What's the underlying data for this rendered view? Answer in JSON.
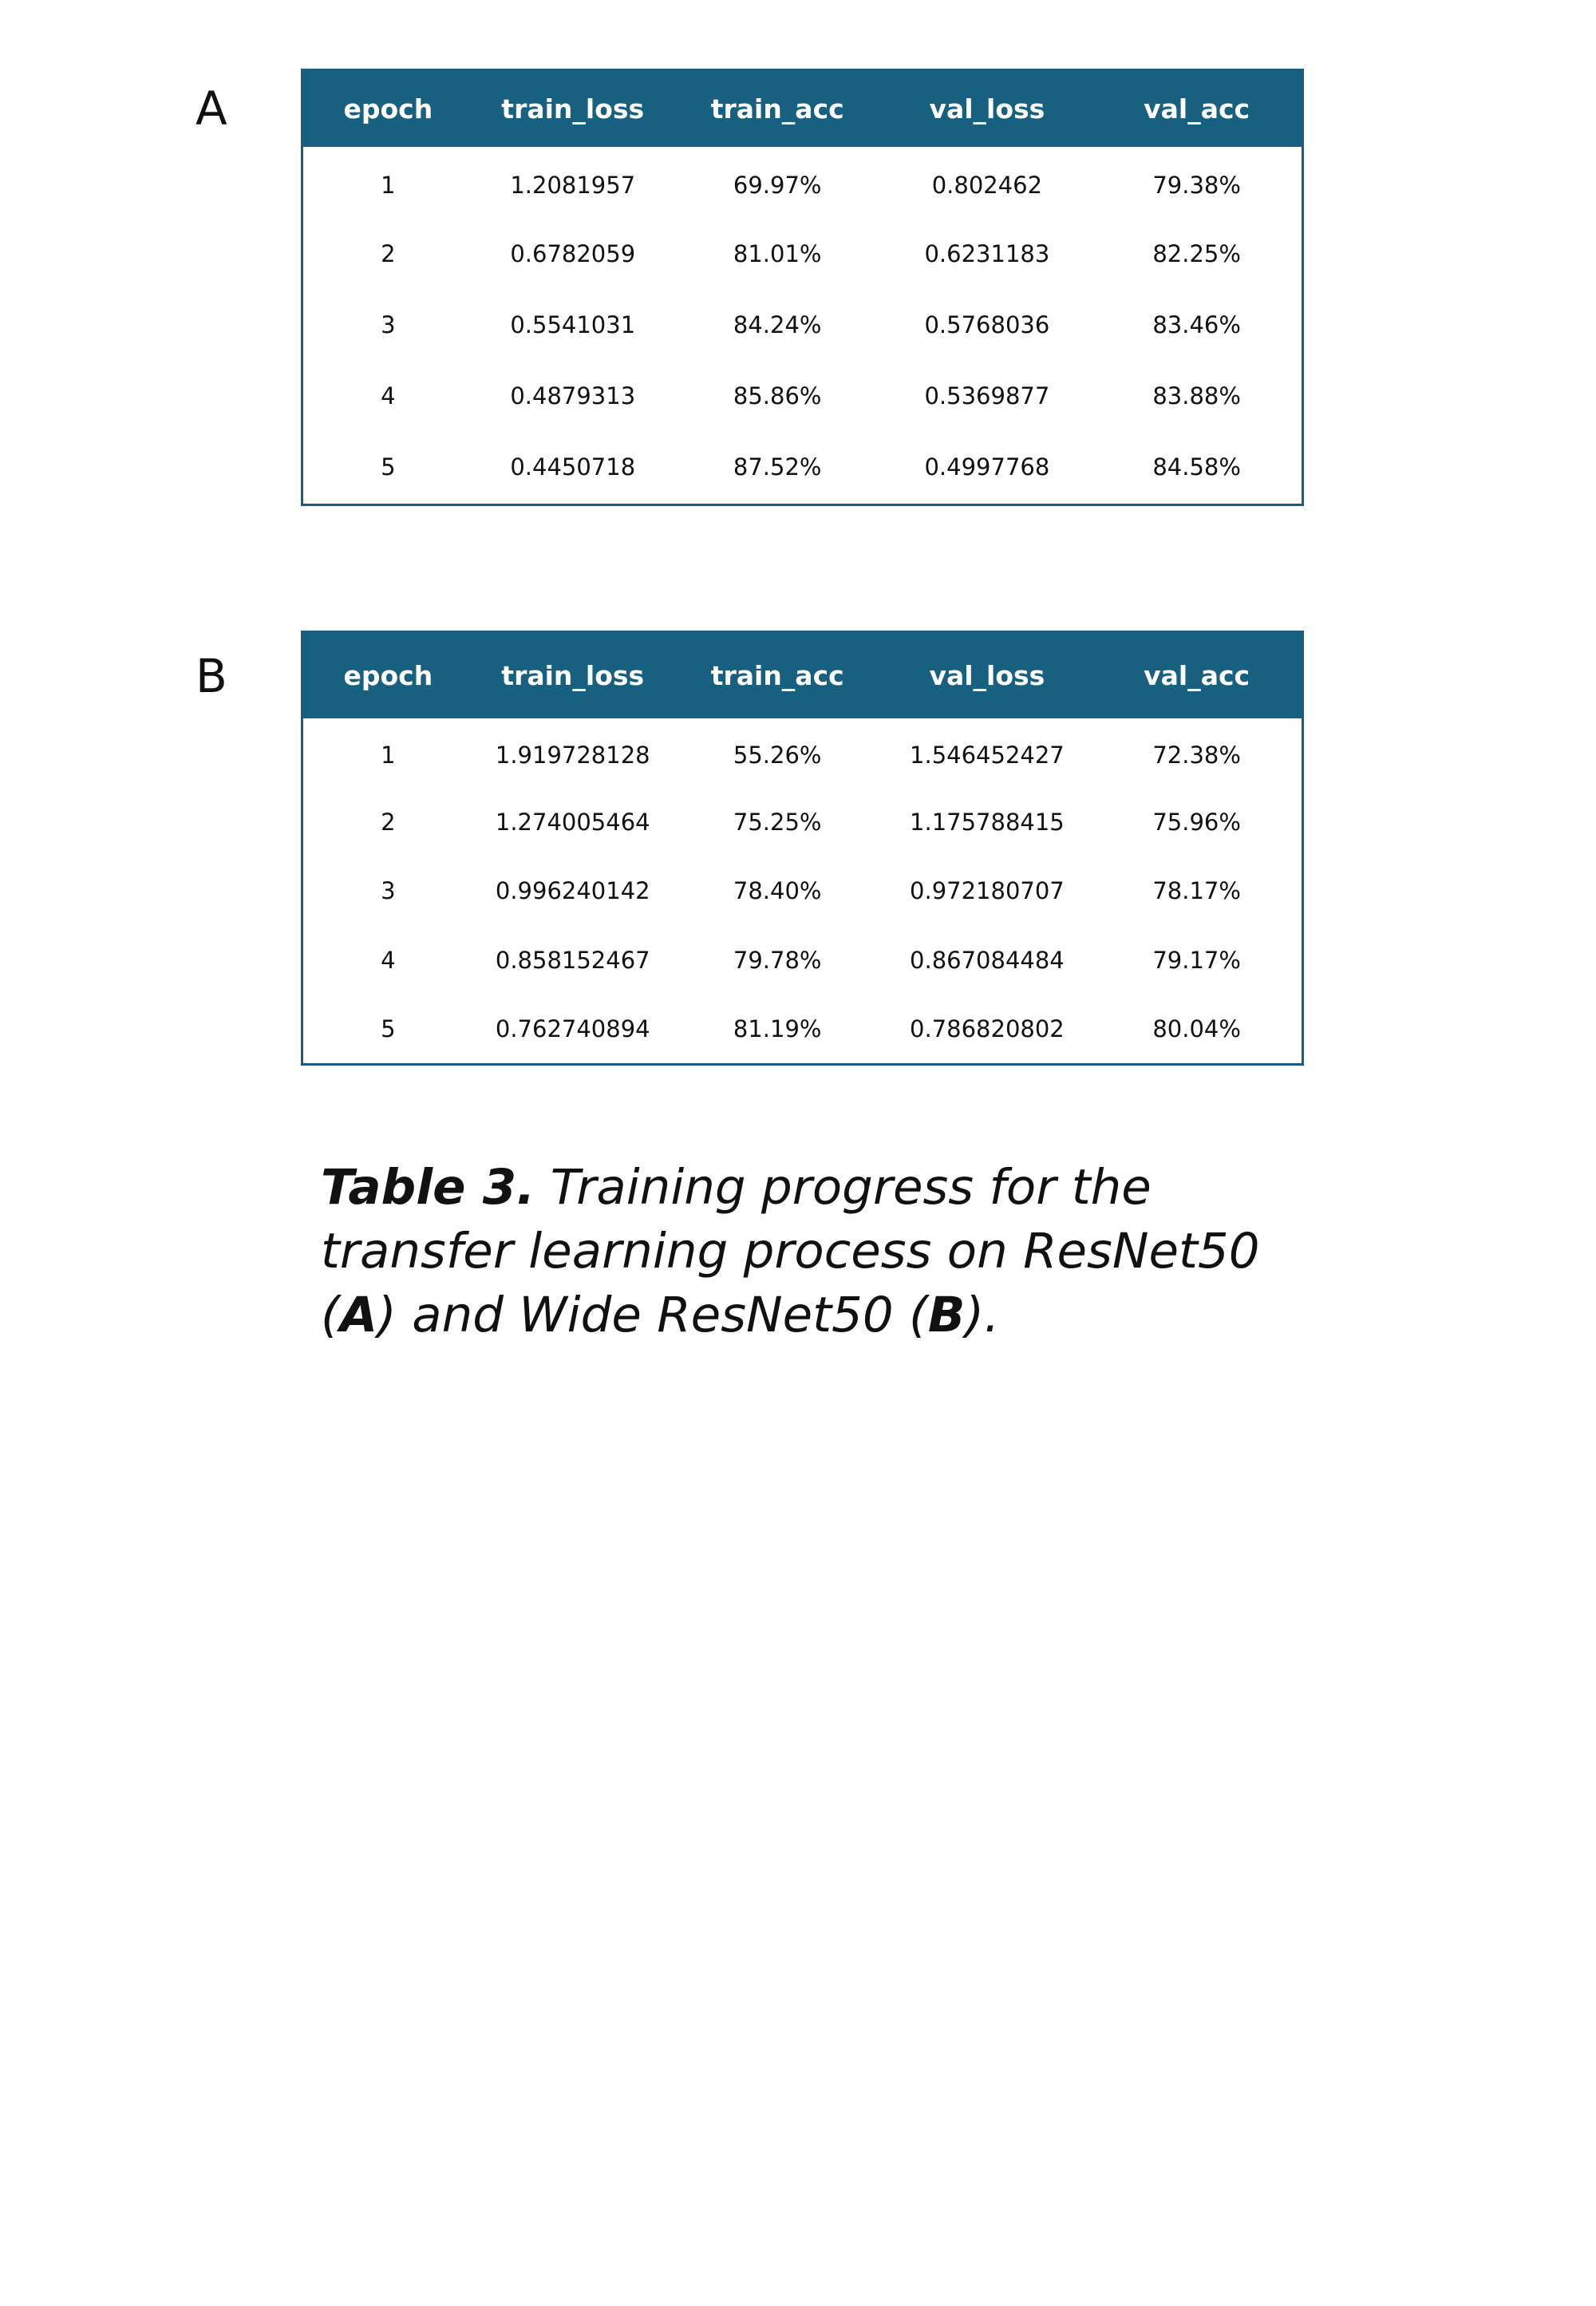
{
  "panel_a": {
    "label": "A",
    "headers": [
      "epoch",
      "train_loss",
      "train_acc",
      "val_loss",
      "val_acc"
    ],
    "rows": [
      [
        "1",
        "1.2081957",
        "69.97%",
        "0.802462",
        "79.38%"
      ],
      [
        "2",
        "0.6782059",
        "81.01%",
        "0.6231183",
        "82.25%"
      ],
      [
        "3",
        "0.5541031",
        "84.24%",
        "0.5768036",
        "83.46%"
      ],
      [
        "4",
        "0.4879313",
        "85.86%",
        "0.5369877",
        "83.88%"
      ],
      [
        "5",
        "0.4450718",
        "87.52%",
        "0.4997768",
        "84.58%"
      ]
    ]
  },
  "panel_b": {
    "label": "B",
    "headers": [
      "epoch",
      "train_loss",
      "train_acc",
      "val_loss",
      "val_acc"
    ],
    "rows": [
      [
        "1",
        "1.919728128",
        "55.26%",
        "1.546452427",
        "72.38%"
      ],
      [
        "2",
        "1.274005464",
        "75.25%",
        "1.175788415",
        "75.96%"
      ],
      [
        "3",
        "0.996240142",
        "78.40%",
        "0.972180707",
        "78.17%"
      ],
      [
        "4",
        "0.858152467",
        "79.78%",
        "0.867084484",
        "79.17%"
      ],
      [
        "5",
        "0.762740894",
        "81.19%",
        "0.786820802",
        "80.04%"
      ]
    ]
  },
  "caption": {
    "label": "Table 3.",
    "text_1": " Training progress for the transfer learning process on ResNet50 (",
    "ref_a": "A",
    "text_2": ") and Wide ResNet50 (",
    "ref_b": "B",
    "text_3": ")."
  },
  "colors": {
    "header_bg": "#17607f",
    "border": "#1a5c80",
    "header_text": "#ffffff"
  }
}
